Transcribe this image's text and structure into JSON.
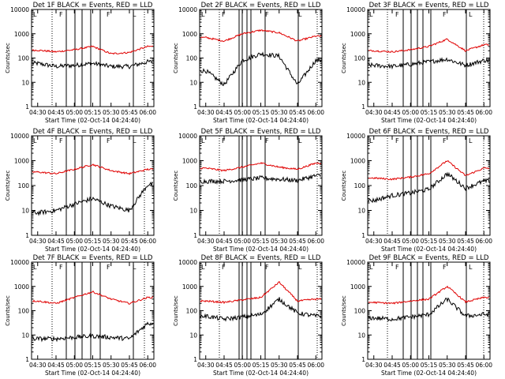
{
  "figure": {
    "x_axis_title": "Start Time (02-Oct-14 04:24:40)",
    "y_axis_title": "Counts/sec",
    "x_tick_labels": [
      "04:30",
      "04:45",
      "05:00",
      "05:15",
      "05:30",
      "05:45",
      "06:00"
    ],
    "y_tick_labels": [
      "1",
      "10",
      "100",
      "1000",
      "10000"
    ],
    "colors": {
      "events": "#000000",
      "lld": "#e00000"
    }
  },
  "chart_data": [
    {
      "type": "line",
      "title": "Det 1F BLACK = Events, RED = LLD",
      "xlabel": "Start Time (02-Oct-14 04:24:40)",
      "ylabel": "Counts/sec",
      "yscale": "log",
      "ylim": [
        1,
        10000
      ],
      "xlim": [
        "04:25",
        "06:05"
      ],
      "x": [
        "04:30",
        "04:45",
        "05:00",
        "05:15",
        "05:30",
        "05:45",
        "06:00"
      ],
      "series": [
        {
          "values": [
            60,
            45,
            50,
            60,
            45,
            45,
            70
          ]
        },
        {
          "values": [
            210,
            180,
            220,
            300,
            150,
            170,
            300
          ]
        }
      ]
    },
    {
      "type": "line",
      "title": "Det 2F BLACK = Events, RED = LLD",
      "xlabel": "Start Time (02-Oct-14 04:24:40)",
      "ylabel": "Counts/sec",
      "yscale": "log",
      "ylim": [
        1,
        10000
      ],
      "xlim": [
        "04:25",
        "06:05"
      ],
      "x": [
        "04:30",
        "04:45",
        "05:00",
        "05:15",
        "05:30",
        "05:45",
        "06:00"
      ],
      "series": [
        {
          "values": [
            30,
            8,
            80,
            150,
            120,
            8,
            80
          ]
        },
        {
          "values": [
            700,
            500,
            1000,
            1400,
            1100,
            500,
            800
          ]
        }
      ]
    },
    {
      "type": "line",
      "title": "Det 3F BLACK = Events, RED = LLD",
      "xlabel": "Start Time (02-Oct-14 04:24:40)",
      "ylabel": "Counts/sec",
      "yscale": "log",
      "ylim": [
        1,
        10000
      ],
      "xlim": [
        "04:25",
        "06:05"
      ],
      "x": [
        "04:30",
        "04:45",
        "05:00",
        "05:15",
        "05:30",
        "05:45",
        "06:00"
      ],
      "series": [
        {
          "values": [
            50,
            45,
            55,
            70,
            90,
            50,
            80
          ]
        },
        {
          "values": [
            200,
            180,
            220,
            300,
            600,
            200,
            350
          ]
        }
      ]
    },
    {
      "type": "line",
      "title": "Det 4F BLACK = Events, RED = LLD",
      "xlabel": "Start Time (02-Oct-14 04:24:40)",
      "ylabel": "Counts/sec",
      "yscale": "log",
      "ylim": [
        1,
        10000
      ],
      "xlim": [
        "04:25",
        "06:05"
      ],
      "x": [
        "04:30",
        "04:45",
        "05:00",
        "05:15",
        "05:30",
        "05:45",
        "06:00"
      ],
      "series": [
        {
          "values": [
            8,
            10,
            18,
            30,
            15,
            10,
            110
          ]
        },
        {
          "values": [
            350,
            300,
            450,
            700,
            400,
            300,
            450
          ]
        }
      ]
    },
    {
      "type": "line",
      "title": "Det 5F BLACK = Events, RED = LLD",
      "xlabel": "Start Time (02-Oct-14 04:24:40)",
      "ylabel": "Counts/sec",
      "yscale": "log",
      "ylim": [
        1,
        10000
      ],
      "xlim": [
        "04:25",
        "06:05"
      ],
      "x": [
        "04:30",
        "04:45",
        "05:00",
        "05:15",
        "05:30",
        "05:45",
        "06:00"
      ],
      "series": [
        {
          "values": [
            150,
            150,
            170,
            200,
            180,
            160,
            250
          ]
        },
        {
          "values": [
            500,
            400,
            550,
            800,
            550,
            450,
            800
          ]
        }
      ]
    },
    {
      "type": "line",
      "title": "Det 6F BLACK = Events, RED = LLD",
      "xlabel": "Start Time (02-Oct-14 04:24:40)",
      "ylabel": "Counts/sec",
      "yscale": "log",
      "ylim": [
        1,
        10000
      ],
      "xlim": [
        "04:25",
        "06:05"
      ],
      "x": [
        "04:30",
        "04:45",
        "05:00",
        "05:15",
        "05:30",
        "05:45",
        "06:00"
      ],
      "series": [
        {
          "values": [
            25,
            40,
            50,
            70,
            300,
            80,
            150
          ]
        },
        {
          "values": [
            200,
            180,
            220,
            300,
            1000,
            250,
            500
          ]
        }
      ]
    },
    {
      "type": "line",
      "title": "Det 7F BLACK = Events, RED = LLD",
      "xlabel": "Start Time (02-Oct-14 04:24:40)",
      "ylabel": "Counts/sec",
      "yscale": "log",
      "ylim": [
        1,
        10000
      ],
      "xlim": [
        "04:25",
        "06:05"
      ],
      "x": [
        "04:30",
        "04:45",
        "05:00",
        "05:15",
        "05:30",
        "05:45",
        "06:00"
      ],
      "series": [
        {
          "values": [
            7,
            7,
            8,
            9,
            8,
            7,
            30
          ]
        },
        {
          "values": [
            250,
            200,
            350,
            600,
            300,
            200,
            350
          ]
        }
      ]
    },
    {
      "type": "line",
      "title": "Det 8F BLACK = Events, RED = LLD",
      "xlabel": "Start Time (02-Oct-14 04:24:40)",
      "ylabel": "Counts/sec",
      "yscale": "log",
      "ylim": [
        1,
        10000
      ],
      "xlim": [
        "04:25",
        "06:05"
      ],
      "x": [
        "04:30",
        "04:45",
        "05:00",
        "05:15",
        "05:30",
        "05:45",
        "06:00"
      ],
      "series": [
        {
          "values": [
            60,
            45,
            55,
            70,
            300,
            80,
            60
          ]
        },
        {
          "values": [
            250,
            220,
            280,
            350,
            1500,
            250,
            300
          ]
        }
      ]
    },
    {
      "type": "line",
      "title": "Det 9F BLACK = Events, RED = LLD",
      "xlabel": "Start Time (02-Oct-14 04:24:40)",
      "ylabel": "Counts/sec",
      "yscale": "log",
      "ylim": [
        1,
        10000
      ],
      "xlim": [
        "04:25",
        "06:05"
      ],
      "x": [
        "04:30",
        "04:45",
        "05:00",
        "05:15",
        "05:30",
        "05:45",
        "06:00"
      ],
      "series": [
        {
          "values": [
            50,
            45,
            55,
            70,
            300,
            60,
            70
          ]
        },
        {
          "values": [
            220,
            200,
            250,
            300,
            1000,
            230,
            350
          ]
        }
      ]
    }
  ]
}
